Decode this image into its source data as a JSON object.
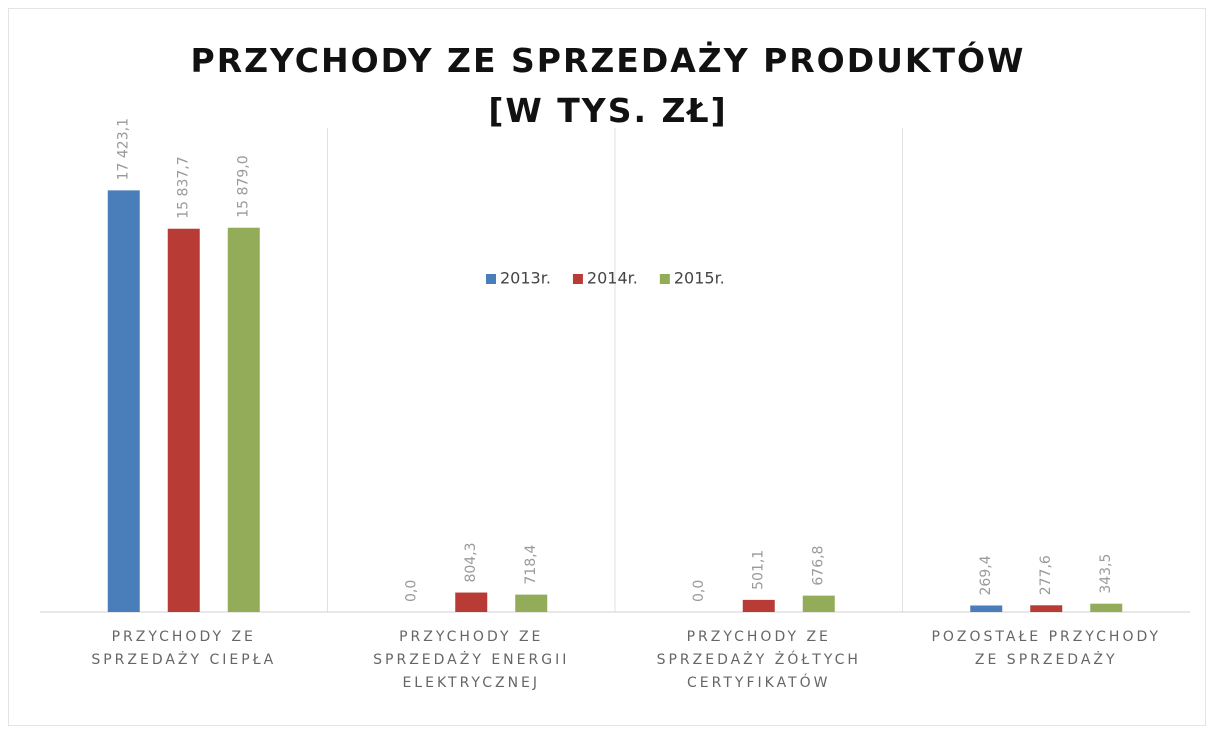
{
  "chart_data": {
    "type": "bar",
    "title": "PRZYCHODY ZE SPRZEDAŻY PRODUKTÓW [W TYS. ZŁ]",
    "categories": [
      "PRZYCHODY ZE SPRZEDAŻY CIEPŁA",
      "PRZYCHODY ZE SPRZEDAŻY ENERGII ELEKTRYCZNEJ",
      "PRZYCHODY ZE SPRZEDAŻY ŻÓŁTYCH CERTYFIKATÓW",
      "POZOSTAŁE PRZYCHODY ZE SPRZEDAŻY"
    ],
    "series": [
      {
        "name": "2013r.",
        "color": "#4a7ebb",
        "values": [
          17423.1,
          0.0,
          0.0,
          269.4
        ],
        "value_labels": [
          "17 423,1",
          "0,0",
          "0,0",
          "269,4"
        ]
      },
      {
        "name": "2014r.",
        "color": "#b83b35",
        "values": [
          15837.7,
          804.3,
          501.1,
          277.6
        ],
        "value_labels": [
          "15 837,7",
          "804,3",
          "501,1",
          "277,6"
        ]
      },
      {
        "name": "2015r.",
        "color": "#92ac5a",
        "values": [
          15879.0,
          718.4,
          676.8,
          343.5
        ],
        "value_labels": [
          "15 879,0",
          "718,4",
          "676,8",
          "343,5"
        ]
      }
    ],
    "ylim": [
      0,
      20000
    ],
    "legend": "top"
  }
}
